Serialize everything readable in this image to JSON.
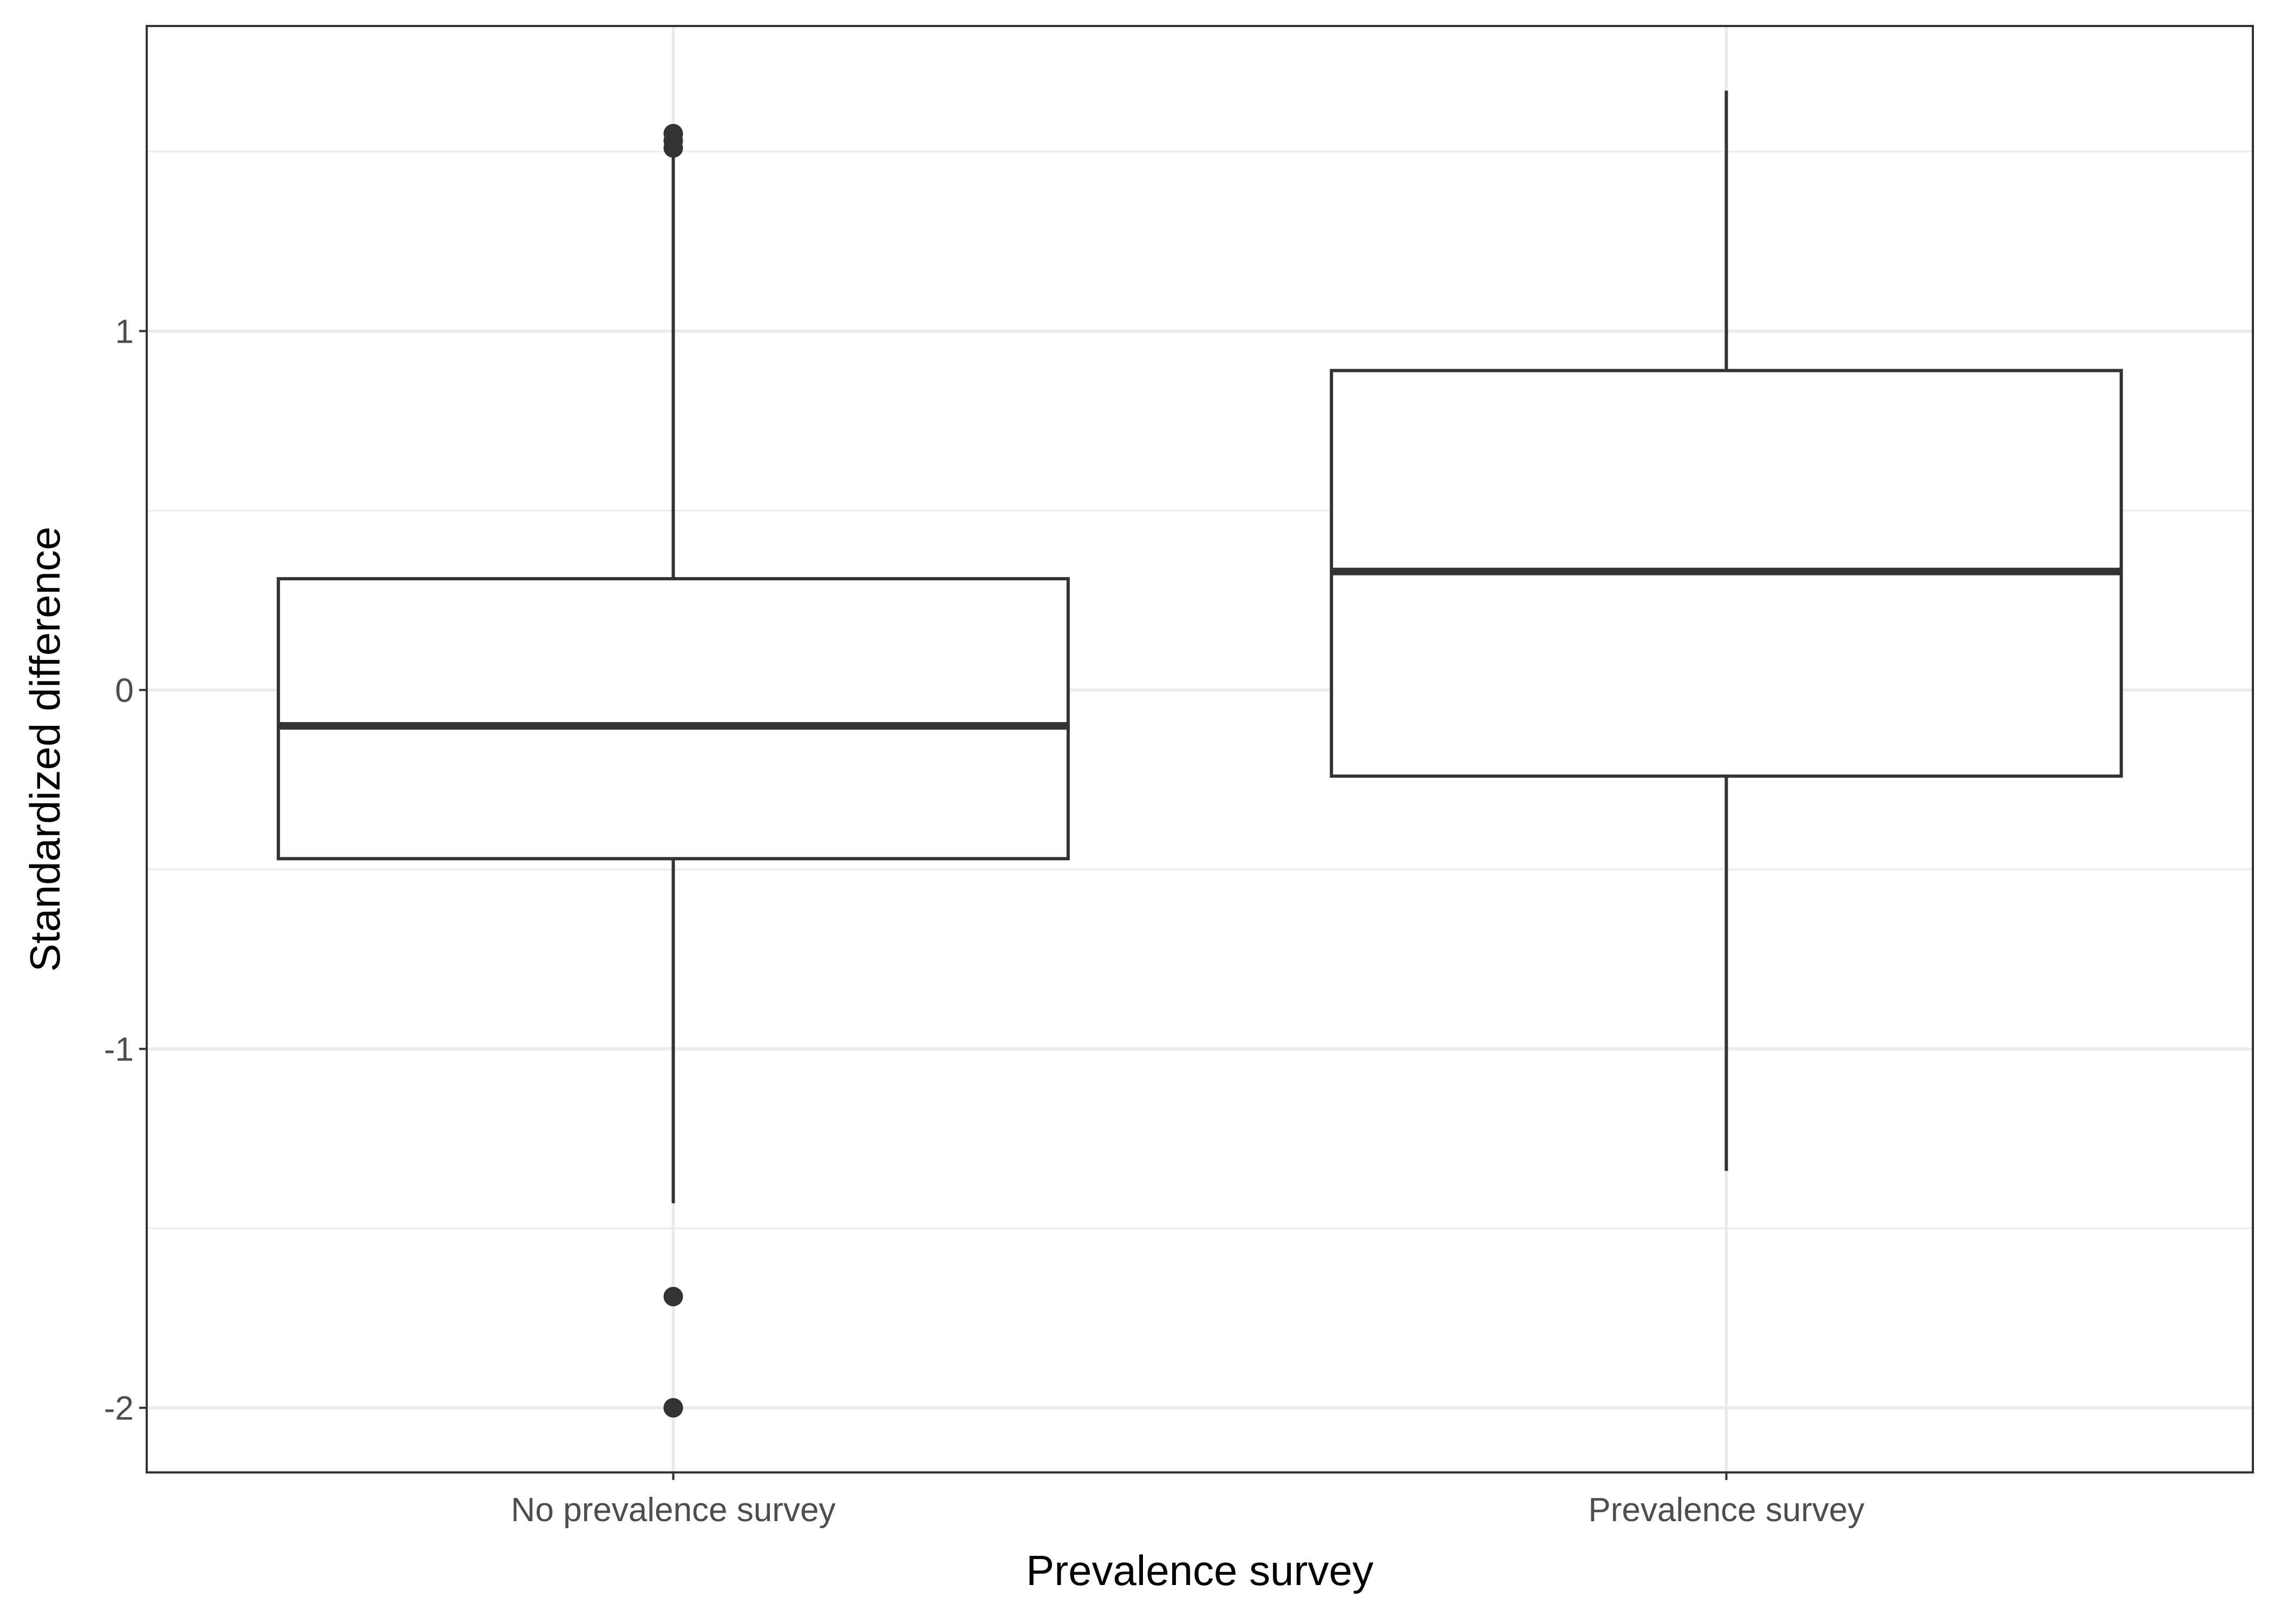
{
  "chart_data": {
    "type": "boxplot",
    "xlabel": "Prevalence survey",
    "ylabel": "Standardized difference",
    "categories": [
      "No prevalence survey",
      "Prevalence survey"
    ],
    "ylim": [
      -2.18,
      1.85
    ],
    "yticks": [
      -2,
      -1,
      0,
      1
    ],
    "ytick_labels": [
      "-2",
      "-1",
      "0",
      "1"
    ],
    "grid": true,
    "boxes": [
      {
        "category": "No prevalence survey",
        "whisker_low": -1.43,
        "q1": -0.47,
        "median": -0.1,
        "q3": 0.31,
        "whisker_high": 1.5,
        "outliers": [
          1.55,
          1.53,
          1.51,
          -1.69,
          -2.0,
          -2.0
        ]
      },
      {
        "category": "Prevalence survey",
        "whisker_low": -1.34,
        "q1": -0.24,
        "median": 0.33,
        "q3": 0.89,
        "whisker_high": 1.67,
        "outliers": []
      }
    ],
    "colors": {
      "box_stroke": "#333333",
      "box_fill": "#ffffff",
      "grid": "#ebebeb",
      "panel_border": "#333333",
      "tick_text": "#4d4d4d",
      "title_text": "#000000"
    }
  }
}
